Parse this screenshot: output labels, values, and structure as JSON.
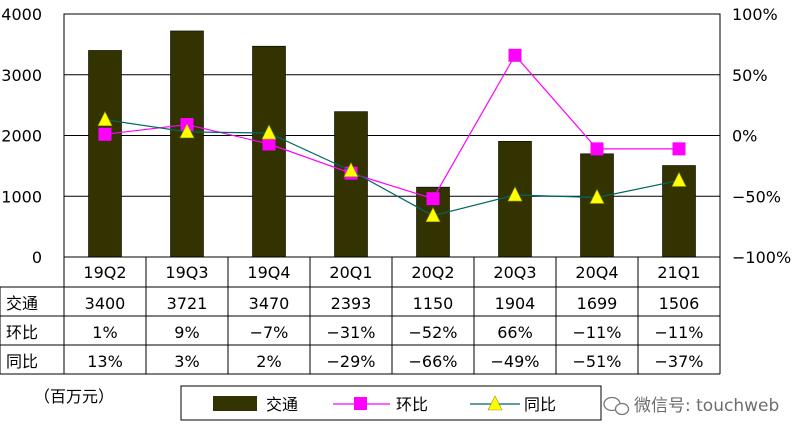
{
  "chart_data": {
    "type": "bar+line",
    "categories": [
      "19Q2",
      "19Q3",
      "19Q4",
      "20Q1",
      "20Q2",
      "20Q3",
      "20Q4",
      "21Q1"
    ],
    "series": [
      {
        "name": "交通",
        "type": "bar",
        "axis": "left",
        "values": [
          3400,
          3721,
          3470,
          2393,
          1150,
          1904,
          1699,
          1506
        ],
        "labels": [
          "3400",
          "3721",
          "3470",
          "2393",
          "1150",
          "1904",
          "1699",
          "1506"
        ],
        "color": "#333300"
      },
      {
        "name": "环比",
        "type": "line",
        "marker": "square",
        "axis": "right",
        "values": [
          1,
          9,
          -7,
          -31,
          -52,
          66,
          -11,
          -11
        ],
        "labels": [
          "1%",
          "9%",
          "−7%",
          "−31%",
          "−52%",
          "66%",
          "−11%",
          "−11%"
        ],
        "color": "#ff00ff"
      },
      {
        "name": "同比",
        "type": "line",
        "marker": "triangle",
        "axis": "right",
        "values": [
          13,
          3,
          2,
          -29,
          -66,
          -49,
          -51,
          -37
        ],
        "labels": [
          "13%",
          "3%",
          "2%",
          "−29%",
          "−66%",
          "−49%",
          "−51%",
          "−37%"
        ],
        "color": "#ffff00",
        "line_color": "#006666"
      }
    ],
    "y_left": {
      "min": 0,
      "max": 4000,
      "ticks": [
        "0",
        "1000",
        "2000",
        "3000",
        "4000"
      ]
    },
    "y_right": {
      "min": -100,
      "max": 100,
      "ticks": [
        "−100%",
        "−50%",
        "0%",
        "50%",
        "100%"
      ]
    },
    "grid": true,
    "unit_note": "（百万元）",
    "legend_position": "bottom"
  },
  "watermark": "微信号: touchweb"
}
